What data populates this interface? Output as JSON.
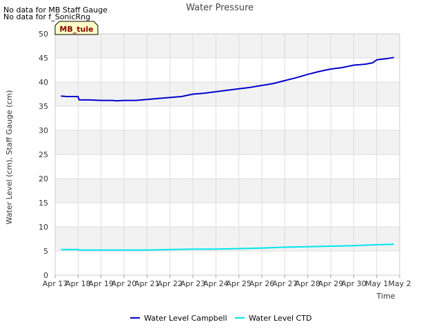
{
  "notes": [
    "No data for MB Staff Gauge",
    "No data for f_SonicRng"
  ],
  "tag_label": "MB_tule",
  "colors": {
    "campbell": "#0000cc",
    "ctd": "#00e5ee",
    "band": "#f2f2f2",
    "grid": "#dddddd",
    "tag_bg": "#ffffc8"
  },
  "chart_data": {
    "type": "line",
    "title": "Water Pressure",
    "xlabel": "Time",
    "ylabel": "Water Level (cm), Staff Gauge (cm)",
    "ylim": [
      0,
      50
    ],
    "yticks": [
      0,
      5,
      10,
      15,
      20,
      25,
      30,
      35,
      40,
      45,
      50
    ],
    "xlim": [
      "2024-04-17",
      "2024-05-02"
    ],
    "xtick_labels": [
      "Apr 17",
      "Apr 18",
      "Apr 19",
      "Apr 20",
      "Apr 21",
      "Apr 22",
      "Apr 23",
      "Apr 24",
      "Apr 25",
      "Apr 26",
      "Apr 27",
      "Apr 28",
      "Apr 29",
      "Apr 30",
      "May 1",
      "May 2"
    ],
    "grid": true,
    "legend_position": "bottom",
    "series": [
      {
        "name": "Water Level Campbell",
        "color": "#0000cc",
        "points": [
          [
            "2024-04-17 06:00",
            37.1
          ],
          [
            "2024-04-17 12:00",
            37.0
          ],
          [
            "2024-04-17 18:00",
            37.0
          ],
          [
            "2024-04-18 00:00",
            37.0
          ],
          [
            "2024-04-18 01:00",
            36.3
          ],
          [
            "2024-04-18 12:00",
            36.3
          ],
          [
            "2024-04-19 00:00",
            36.2
          ],
          [
            "2024-04-19 12:00",
            36.2
          ],
          [
            "2024-04-19 16:00",
            36.1
          ],
          [
            "2024-04-20 00:00",
            36.2
          ],
          [
            "2024-04-20 12:00",
            36.2
          ],
          [
            "2024-04-21 00:00",
            36.4
          ],
          [
            "2024-04-21 12:00",
            36.6
          ],
          [
            "2024-04-22 00:00",
            36.8
          ],
          [
            "2024-04-22 12:00",
            37.0
          ],
          [
            "2024-04-23 00:00",
            37.5
          ],
          [
            "2024-04-23 12:00",
            37.7
          ],
          [
            "2024-04-24 00:00",
            38.0
          ],
          [
            "2024-04-24 12:00",
            38.3
          ],
          [
            "2024-04-25 00:00",
            38.6
          ],
          [
            "2024-04-25 12:00",
            38.9
          ],
          [
            "2024-04-26 00:00",
            39.3
          ],
          [
            "2024-04-26 12:00",
            39.7
          ],
          [
            "2024-04-27 00:00",
            40.3
          ],
          [
            "2024-04-27 12:00",
            40.9
          ],
          [
            "2024-04-28 00:00",
            41.6
          ],
          [
            "2024-04-28 12:00",
            42.2
          ],
          [
            "2024-04-29 00:00",
            42.7
          ],
          [
            "2024-04-29 12:00",
            43.0
          ],
          [
            "2024-04-30 00:00",
            43.5
          ],
          [
            "2024-04-30 12:00",
            43.7
          ],
          [
            "2024-04-30 20:00",
            44.0
          ],
          [
            "2024-05-01 00:00",
            44.6
          ],
          [
            "2024-05-01 12:00",
            44.9
          ],
          [
            "2024-05-01 18:00",
            45.1
          ]
        ]
      },
      {
        "name": "Water Level CTD",
        "color": "#00e5ee",
        "points": [
          [
            "2024-04-17 06:00",
            5.3
          ],
          [
            "2024-04-18 00:00",
            5.3
          ],
          [
            "2024-04-18 01:00",
            5.2
          ],
          [
            "2024-04-19 00:00",
            5.2
          ],
          [
            "2024-04-20 00:00",
            5.2
          ],
          [
            "2024-04-21 00:00",
            5.2
          ],
          [
            "2024-04-22 00:00",
            5.3
          ],
          [
            "2024-04-23 00:00",
            5.4
          ],
          [
            "2024-04-24 00:00",
            5.4
          ],
          [
            "2024-04-25 00:00",
            5.5
          ],
          [
            "2024-04-26 00:00",
            5.6
          ],
          [
            "2024-04-27 00:00",
            5.8
          ],
          [
            "2024-04-28 00:00",
            5.9
          ],
          [
            "2024-04-29 00:00",
            6.0
          ],
          [
            "2024-04-30 00:00",
            6.1
          ],
          [
            "2024-05-01 00:00",
            6.3
          ],
          [
            "2024-05-01 18:00",
            6.4
          ]
        ]
      }
    ]
  }
}
